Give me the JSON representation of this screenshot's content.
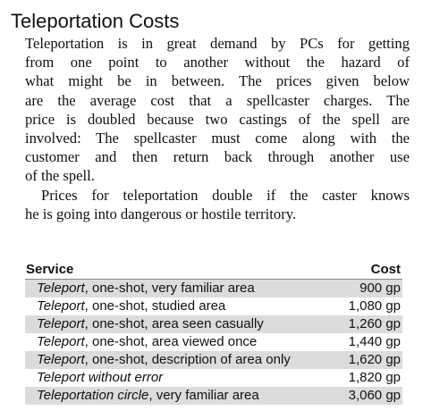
{
  "section": {
    "title": "Teleportation Costs",
    "paragraph1_lines": [
      "Teleportation is in great demand by PCs for getting",
      "from one point to another without the hazard of",
      "what might be in between. The prices given below",
      "are the average cost that a spellcaster charges. The",
      "price is doubled because two castings of the spell are",
      "involved: The spellcaster must come along with the",
      "customer and then return back through another use",
      "of the spell."
    ],
    "paragraph2_lines": [
      "Prices for teleportation double if the caster knows",
      "he is going into dangerous or hostile territory."
    ]
  },
  "table": {
    "header": {
      "service": "Service",
      "cost": "Cost"
    },
    "rows": [
      {
        "spell": "Teleport",
        "rest": ", one-shot, very familiar area",
        "cost": "900 gp"
      },
      {
        "spell": "Teleport",
        "rest": ", one-shot, studied area",
        "cost": "1,080 gp"
      },
      {
        "spell": "Teleport",
        "rest": ", one-shot, area seen casually",
        "cost": "1,260 gp"
      },
      {
        "spell": "Teleport",
        "rest": ", one-shot, area viewed once",
        "cost": "1,440 gp"
      },
      {
        "spell": "Teleport",
        "rest": ", one-shot, description of area only",
        "cost": "1,620 gp"
      },
      {
        "spell": "Teleport without error",
        "rest": "",
        "cost": "1,820 gp"
      },
      {
        "spell": "Teleportation circle",
        "rest": ", very familiar area",
        "cost": "3,060 gp"
      }
    ]
  },
  "colors": {
    "text": "#111111",
    "row_shading": "#dcdcdc",
    "header_rule": "#888888"
  }
}
